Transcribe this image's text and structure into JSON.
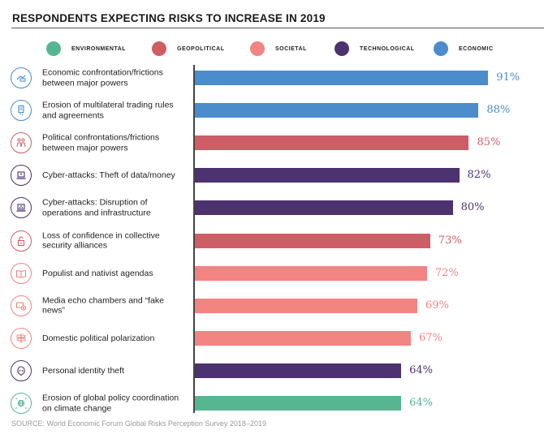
{
  "chart_data": {
    "type": "bar",
    "orientation": "horizontal",
    "title": "RESPONDENTS EXPECTING RISKS TO INCREASE IN 2019",
    "xlabel": "",
    "ylabel": "",
    "xlim": [
      0,
      100
    ],
    "unit": "%",
    "legend_position": "top",
    "legend": [
      {
        "name": "ENVIRONMENTAL",
        "color": "#55b691"
      },
      {
        "name": "GEOPOLITICAL",
        "color": "#cf5d66"
      },
      {
        "name": "SOCIETAL",
        "color": "#f28482"
      },
      {
        "name": "TECHNOLOGICAL",
        "color": "#4d3270"
      },
      {
        "name": "ECONOMIC",
        "color": "#4a8ccc"
      }
    ],
    "categories": [
      "Economic confrontation/frictions between major powers",
      "Erosion of multilateral trading rules and agreements",
      "Political confrontations/frictions between major powers",
      "Cyber-attacks: Theft of data/money",
      "Cyber-attacks: Disruption of operations and infrastructure",
      "Loss of confidence in collective security alliances",
      "Populist and nativist agendas",
      "Media echo chambers and “fake news”",
      "Domestic political polarization",
      "Personal identity theft",
      "Erosion of global policy coordination on climate change"
    ],
    "values": [
      91,
      88,
      85,
      82,
      80,
      73,
      72,
      69,
      67,
      64,
      64
    ],
    "value_labels": [
      "91%",
      "88%",
      "85%",
      "82%",
      "80%",
      "73%",
      "72%",
      "69%",
      "67%",
      "64%",
      "64%"
    ],
    "category_types": [
      "ECONOMIC",
      "ECONOMIC",
      "GEOPOLITICAL",
      "TECHNOLOGICAL",
      "TECHNOLOGICAL",
      "GEOPOLITICAL",
      "SOCIETAL",
      "SOCIETAL",
      "SOCIETAL",
      "TECHNOLOGICAL",
      "ENVIRONMENTAL"
    ],
    "icons": [
      "trade-friction-icon",
      "trade-rules-document-icon",
      "political-confrontation-icon",
      "laptop-theft-icon",
      "laptop-network-icon",
      "unlocked-padlock-icon",
      "open-book-icon",
      "media-screen-cross-icon",
      "signpost-icon",
      "hacker-identity-icon",
      "globe-coordination-icon"
    ],
    "source": "SOURCE: World Economic Forum Global Risks Perception Survey 2018–2019"
  }
}
